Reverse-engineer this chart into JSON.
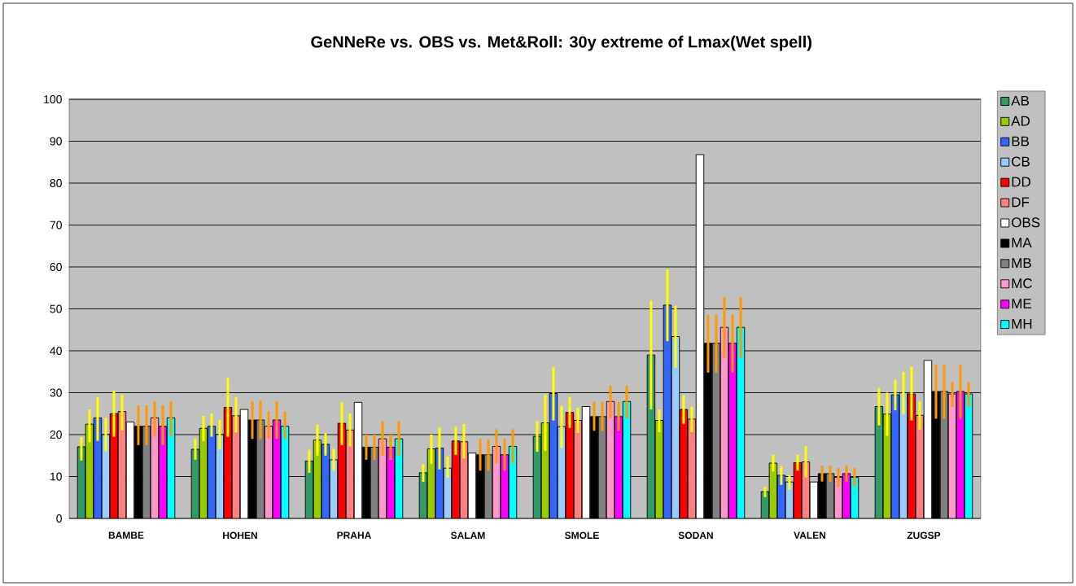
{
  "chart_data": {
    "type": "bar",
    "title": "GeNNeRe vs. OBS vs. Met&Roll: 30y extreme of Lmax(Wet spell)",
    "categories": [
      "BAMBE",
      "HOHEN",
      "PRAHA",
      "SALAM",
      "SMOLE",
      "SODAN",
      "VALEN",
      "ZUGSP"
    ],
    "ylim": [
      0,
      100
    ],
    "yticks": [
      0,
      10,
      20,
      30,
      40,
      50,
      60,
      70,
      80,
      90,
      100
    ],
    "grid": "y",
    "legend": "right",
    "series": [
      {
        "name": "AB",
        "color": "#339966",
        "values": [
          17.1,
          16.5,
          13.7,
          10.9,
          19.6,
          39,
          6.4,
          26.7
        ],
        "errors": [
          [
            13.8,
            19.4
          ],
          [
            14,
            19
          ],
          [
            10.9,
            16.4
          ],
          [
            8.7,
            13
          ],
          [
            15.9,
            23.2
          ],
          [
            26,
            52
          ],
          [
            5.1,
            7.6
          ],
          [
            22.2,
            31.1
          ]
        ]
      },
      {
        "name": "AD",
        "color": "#99cc00",
        "values": [
          22.5,
          21.5,
          18.7,
          16.6,
          22.8,
          23.4,
          13.2,
          24.9
        ],
        "errors": [
          [
            18.2,
            26
          ],
          [
            18.5,
            24.5
          ],
          [
            15,
            22.4
          ],
          [
            13,
            20
          ],
          [
            16.1,
            29.5
          ],
          [
            20.6,
            26
          ],
          [
            11.2,
            15.2
          ],
          [
            19.7,
            30
          ]
        ]
      },
      {
        "name": "BB",
        "color": "#3366ff",
        "values": [
          24,
          22,
          17.7,
          16.8,
          29.8,
          50.9,
          10.3,
          29.5
        ],
        "errors": [
          [
            18.5,
            29
          ],
          [
            19.5,
            25
          ],
          [
            15,
            20.3
          ],
          [
            11.7,
            21.7
          ],
          [
            23.4,
            36.1
          ],
          [
            42.3,
            59.4
          ],
          [
            8,
            12.4
          ],
          [
            25.8,
            33.1
          ]
        ]
      },
      {
        "name": "CB",
        "color": "#99ccff",
        "values": [
          20,
          20,
          14,
          12,
          21.9,
          43.4,
          8.7,
          30
        ],
        "errors": [
          [
            16,
            24
          ],
          [
            16.5,
            23.5
          ],
          [
            11.4,
            16.6
          ],
          [
            9.7,
            14.8
          ],
          [
            16.8,
            26.9
          ],
          [
            36,
            50.7
          ],
          [
            6.9,
            10.3
          ],
          [
            24.9,
            35
          ]
        ]
      },
      {
        "name": "DD",
        "color": "#ff0000",
        "values": [
          25,
          26.5,
          22.7,
          18.5,
          25.3,
          26,
          13.3,
          29.7
        ],
        "errors": [
          [
            19.5,
            30.5
          ],
          [
            19.5,
            33.5
          ],
          [
            17.5,
            27.8
          ],
          [
            15.2,
            21.9
          ],
          [
            21.6,
            29
          ],
          [
            22.6,
            29.4
          ],
          [
            11.4,
            15.2
          ],
          [
            23.4,
            36.2
          ]
        ]
      },
      {
        "name": "DF",
        "color": "#ff8080",
        "values": [
          25.5,
          24.5,
          21.1,
          18.3,
          23.4,
          23.7,
          13.5,
          24.6
        ],
        "errors": [
          [
            21,
            29.5
          ],
          [
            20.5,
            29
          ],
          [
            17.2,
            25
          ],
          [
            14.3,
            22.5
          ],
          [
            20.4,
            26.4
          ],
          [
            20.6,
            26.7
          ],
          [
            9.8,
            17.2
          ],
          [
            21.2,
            27.9
          ]
        ]
      },
      {
        "name": "OBS",
        "color": "#ffffff",
        "values": [
          23,
          26,
          27.7,
          15.6,
          26.7,
          86.8,
          8.7,
          37.7
        ]
      },
      {
        "name": "MA",
        "color": "#000000",
        "values": [
          22,
          23.5,
          17,
          15.2,
          24.3,
          41.8,
          10.7,
          30.3
        ],
        "errors": [
          [
            17.5,
            27
          ],
          [
            19,
            28
          ],
          [
            14,
            20
          ],
          [
            11.4,
            19
          ],
          [
            20.9,
            27.8
          ],
          [
            34.8,
            48.6
          ],
          [
            8.8,
            12.6
          ],
          [
            23.8,
            36.6
          ]
        ]
      },
      {
        "name": "MB",
        "color": "#808080",
        "values": [
          22,
          23.5,
          17,
          15.2,
          24.3,
          41.8,
          10.7,
          30.3
        ],
        "errors": [
          [
            17.5,
            27
          ],
          [
            19,
            28
          ],
          [
            14,
            20
          ],
          [
            11.4,
            19
          ],
          [
            20.9,
            27.8
          ],
          [
            34.8,
            48.6
          ],
          [
            8.8,
            12.6
          ],
          [
            23.8,
            36.6
          ]
        ]
      },
      {
        "name": "MC",
        "color": "#ff99cc",
        "values": [
          24,
          22,
          19,
          17.2,
          27.9,
          45.6,
          9.8,
          29.7
        ],
        "errors": [
          [
            19.5,
            28
          ],
          [
            19,
            25.5
          ],
          [
            15,
            23.2
          ],
          [
            13.1,
            21.3
          ],
          [
            23.9,
            31.7
          ],
          [
            38.3,
            52.8
          ],
          [
            7.5,
            12
          ],
          [
            26.6,
            32.6
          ]
        ]
      },
      {
        "name": "ME",
        "color": "#ff00ff",
        "values": [
          22,
          23.5,
          17,
          15.2,
          24.3,
          41.8,
          10.7,
          30.3
        ],
        "errors": [
          [
            17.5,
            27
          ],
          [
            19,
            28
          ],
          [
            14,
            20
          ],
          [
            11.4,
            19
          ],
          [
            20.9,
            27.8
          ],
          [
            34.8,
            48.6
          ],
          [
            8.8,
            12.6
          ],
          [
            23.8,
            36.6
          ]
        ]
      },
      {
        "name": "MH",
        "color": "#00ffff",
        "values": [
          24,
          22,
          19,
          17.2,
          27.9,
          45.6,
          9.8,
          29.7
        ],
        "errors": [
          [
            19.5,
            28
          ],
          [
            19,
            25.5
          ],
          [
            15,
            23.2
          ],
          [
            13.1,
            21.3
          ],
          [
            23.9,
            31.7
          ],
          [
            38.3,
            52.8
          ],
          [
            7.5,
            12
          ],
          [
            26.6,
            32.6
          ]
        ]
      }
    ]
  }
}
